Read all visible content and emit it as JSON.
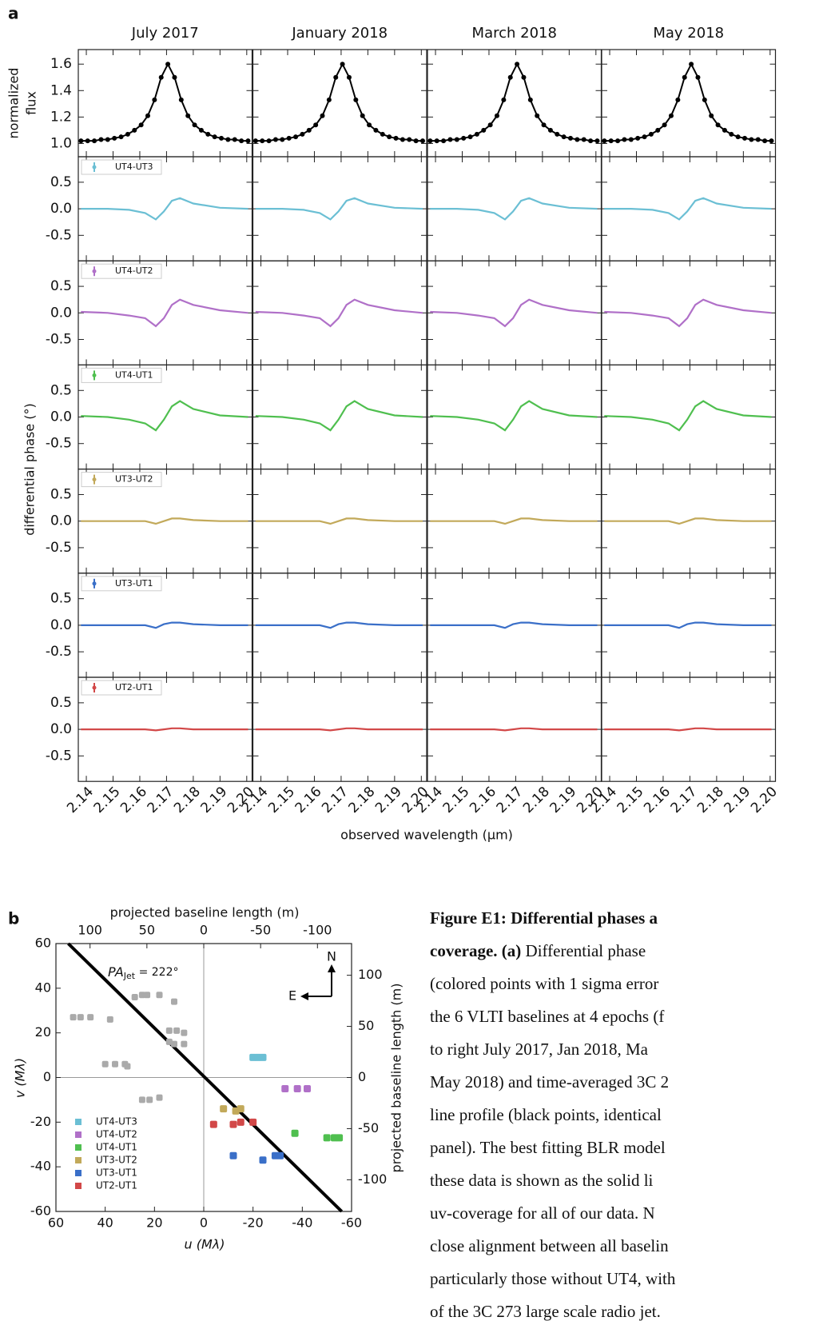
{
  "chart_data": [
    {
      "type": "line",
      "panel_label": "a",
      "columns": [
        "July 2017",
        "January 2018",
        "March 2018",
        "May 2018"
      ],
      "xlabel": "observed wavelength (µm)",
      "ylabel": "differential phase (°)",
      "xlim": [
        2.137,
        2.202
      ],
      "xticks": [
        2.14,
        2.15,
        2.16,
        2.17,
        2.18,
        2.19,
        {
          "value": 2.2,
          "label": "2.20"
        }
      ],
      "flux": {
        "ylabel": [
          "normalized",
          "flux"
        ],
        "ylim": [
          0.9,
          1.71
        ],
        "color": "#000000",
        "yticks": [
          {
            "value": 1,
            "label": "1.0"
          },
          1.2,
          1.4,
          1.6
        ],
        "x": [
          2.138,
          2.1405,
          2.143,
          2.1455,
          2.148,
          2.1505,
          2.153,
          2.1555,
          2.158,
          2.1605,
          2.163,
          2.1655,
          2.168,
          2.1705,
          2.173,
          2.1755,
          2.178,
          2.1805,
          2.183,
          2.1855,
          2.188,
          2.1905,
          2.193,
          2.1955,
          2.198,
          2.2005
        ],
        "values": [
          1.02,
          1.02,
          1.02,
          1.03,
          1.03,
          1.04,
          1.05,
          1.07,
          1.1,
          1.14,
          1.21,
          1.33,
          1.5,
          1.6,
          1.5,
          1.33,
          1.21,
          1.14,
          1.1,
          1.07,
          1.05,
          1.04,
          1.03,
          1.03,
          1.02,
          1.02
        ]
      },
      "phase": {
        "ylim": [
          -0.98,
          0.98
        ],
        "yticks": [
          0.5,
          {
            "value": 0,
            "label": "0.0"
          },
          -0.5
        ],
        "x": [
          2.138,
          2.148,
          2.156,
          2.162,
          2.166,
          2.169,
          2.172,
          2.175,
          2.18,
          2.19,
          2.2005
        ],
        "series": [
          {
            "name": "UT4-UT3",
            "color": "#6bbfd4",
            "values": [
              0,
              0,
              -0.02,
              -0.08,
              -0.2,
              -0.05,
              0.15,
              0.2,
              0.1,
              0.02,
              0
            ]
          },
          {
            "name": "UT4-UT2",
            "color": "#b070c8",
            "values": [
              0.02,
              0,
              -0.05,
              -0.1,
              -0.25,
              -0.1,
              0.15,
              0.25,
              0.15,
              0.05,
              0
            ]
          },
          {
            "name": "UT4-UT1",
            "color": "#4fbf4f",
            "values": [
              0.02,
              0,
              -0.05,
              -0.12,
              -0.25,
              -0.05,
              0.2,
              0.3,
              0.15,
              0.03,
              0
            ]
          },
          {
            "name": "UT3-UT2",
            "color": "#c2a95a",
            "values": [
              0,
              0,
              0,
              0,
              -0.05,
              0,
              0.05,
              0.05,
              0.02,
              0,
              0
            ]
          },
          {
            "name": "UT3-UT1",
            "color": "#3a6fc8",
            "values": [
              0,
              0,
              0,
              0,
              -0.05,
              0.02,
              0.05,
              0.05,
              0.02,
              0,
              0
            ]
          },
          {
            "name": "UT2-UT1",
            "color": "#d24848",
            "values": [
              0,
              0,
              0,
              0,
              -0.02,
              0,
              0.02,
              0.02,
              0,
              0,
              0
            ]
          }
        ]
      }
    },
    {
      "type": "scatter",
      "panel_label": "b",
      "xlabel": "u (Mλ)",
      "ylabel": "v (Mλ)",
      "x2label": "projected baseline length (m)",
      "y2label": "projected baseline length (m)",
      "xlim": [
        60,
        -60
      ],
      "ylim": [
        -60,
        60
      ],
      "xticks": [
        60,
        40,
        20,
        0,
        -20,
        -40,
        -60
      ],
      "yticks": [
        60,
        40,
        20,
        0,
        -20,
        -40,
        -60
      ],
      "x2lim": [
        130,
        -130
      ],
      "x2ticks": [
        100,
        50,
        0,
        -50,
        -100
      ],
      "y2lim": [
        -131,
        131
      ],
      "y2ticks": [
        100,
        50,
        0,
        -50,
        -100
      ],
      "jet_line": {
        "u": [
          55,
          -56
        ],
        "v": [
          60,
          -60
        ]
      },
      "annotation": {
        "symbol": "PA",
        "sub": "Jet",
        "text": " = 222°"
      },
      "compass": {
        "north": "N",
        "east": "E"
      },
      "legend": "lower left",
      "background": {
        "color": "#aaaaaa",
        "u": [
          53,
          50,
          46,
          38,
          36,
          40,
          32,
          31,
          25,
          23,
          28,
          18,
          12,
          14,
          11,
          8,
          14,
          12,
          8,
          25,
          22,
          18
        ],
        "v": [
          27,
          27,
          27,
          26,
          6,
          6,
          6,
          5,
          37,
          37,
          36,
          37,
          34,
          21,
          21,
          20,
          16,
          15,
          15,
          -10,
          -10,
          -9
        ]
      },
      "series": [
        {
          "name": "UT4-UT3",
          "color": "#6bbfd4",
          "u": [
            -20,
            -22,
            -24
          ],
          "v": [
            9,
            9,
            9
          ]
        },
        {
          "name": "UT4-UT2",
          "color": "#b070c8",
          "u": [
            -33,
            -38,
            -42
          ],
          "v": [
            -5,
            -5,
            -5
          ]
        },
        {
          "name": "UT4-UT1",
          "color": "#4fbf4f",
          "u": [
            -37,
            -50,
            -53,
            -55
          ],
          "v": [
            -25,
            -27,
            -27,
            -27
          ]
        },
        {
          "name": "UT3-UT2",
          "color": "#c2a95a",
          "u": [
            -8,
            -13,
            -15
          ],
          "v": [
            -14,
            -15,
            -14
          ]
        },
        {
          "name": "UT3-UT1",
          "color": "#3a6fc8",
          "u": [
            -12,
            -24,
            -29,
            -31
          ],
          "v": [
            -35,
            -37,
            -35,
            -35
          ]
        },
        {
          "name": "UT2-UT1",
          "color": "#d24848",
          "u": [
            -4,
            -12,
            -15,
            -20
          ],
          "v": [
            -21,
            -21,
            -20,
            -20
          ]
        }
      ]
    }
  ],
  "caption": {
    "lines": [
      [
        {
          "text": "Figure E1: Differential phases a",
          "bold": true
        }
      ],
      [
        {
          "text": "coverage. (a)",
          "bold": true
        },
        {
          "text": " Differential phase",
          "bold": false
        }
      ],
      [
        {
          "text": "(colored points with 1 sigma error",
          "bold": false
        }
      ],
      [
        {
          "text": "the 6 VLTI baselines at 4 epochs (f",
          "bold": false
        }
      ],
      [
        {
          "text": "to right July 2017, Jan 2018, Ma",
          "bold": false
        }
      ],
      [
        {
          "text": "May 2018) and time-averaged 3C 2",
          "bold": false
        }
      ],
      [
        {
          "text": "line profile (black points, identical",
          "bold": false
        }
      ],
      [
        {
          "text": "panel). The best fitting BLR model",
          "bold": false
        }
      ],
      [
        {
          "text": "these data is shown as the solid li",
          "bold": false
        }
      ],
      [
        {
          "text": "uv-coverage for all of our data. N",
          "bold": false
        }
      ],
      [
        {
          "text": "close alignment between all baselin",
          "bold": false
        }
      ],
      [
        {
          "text": "particularly those without UT4, with",
          "bold": false
        }
      ],
      [
        {
          "text": "of the 3C 273 large scale radio jet.",
          "bold": false
        }
      ]
    ]
  }
}
